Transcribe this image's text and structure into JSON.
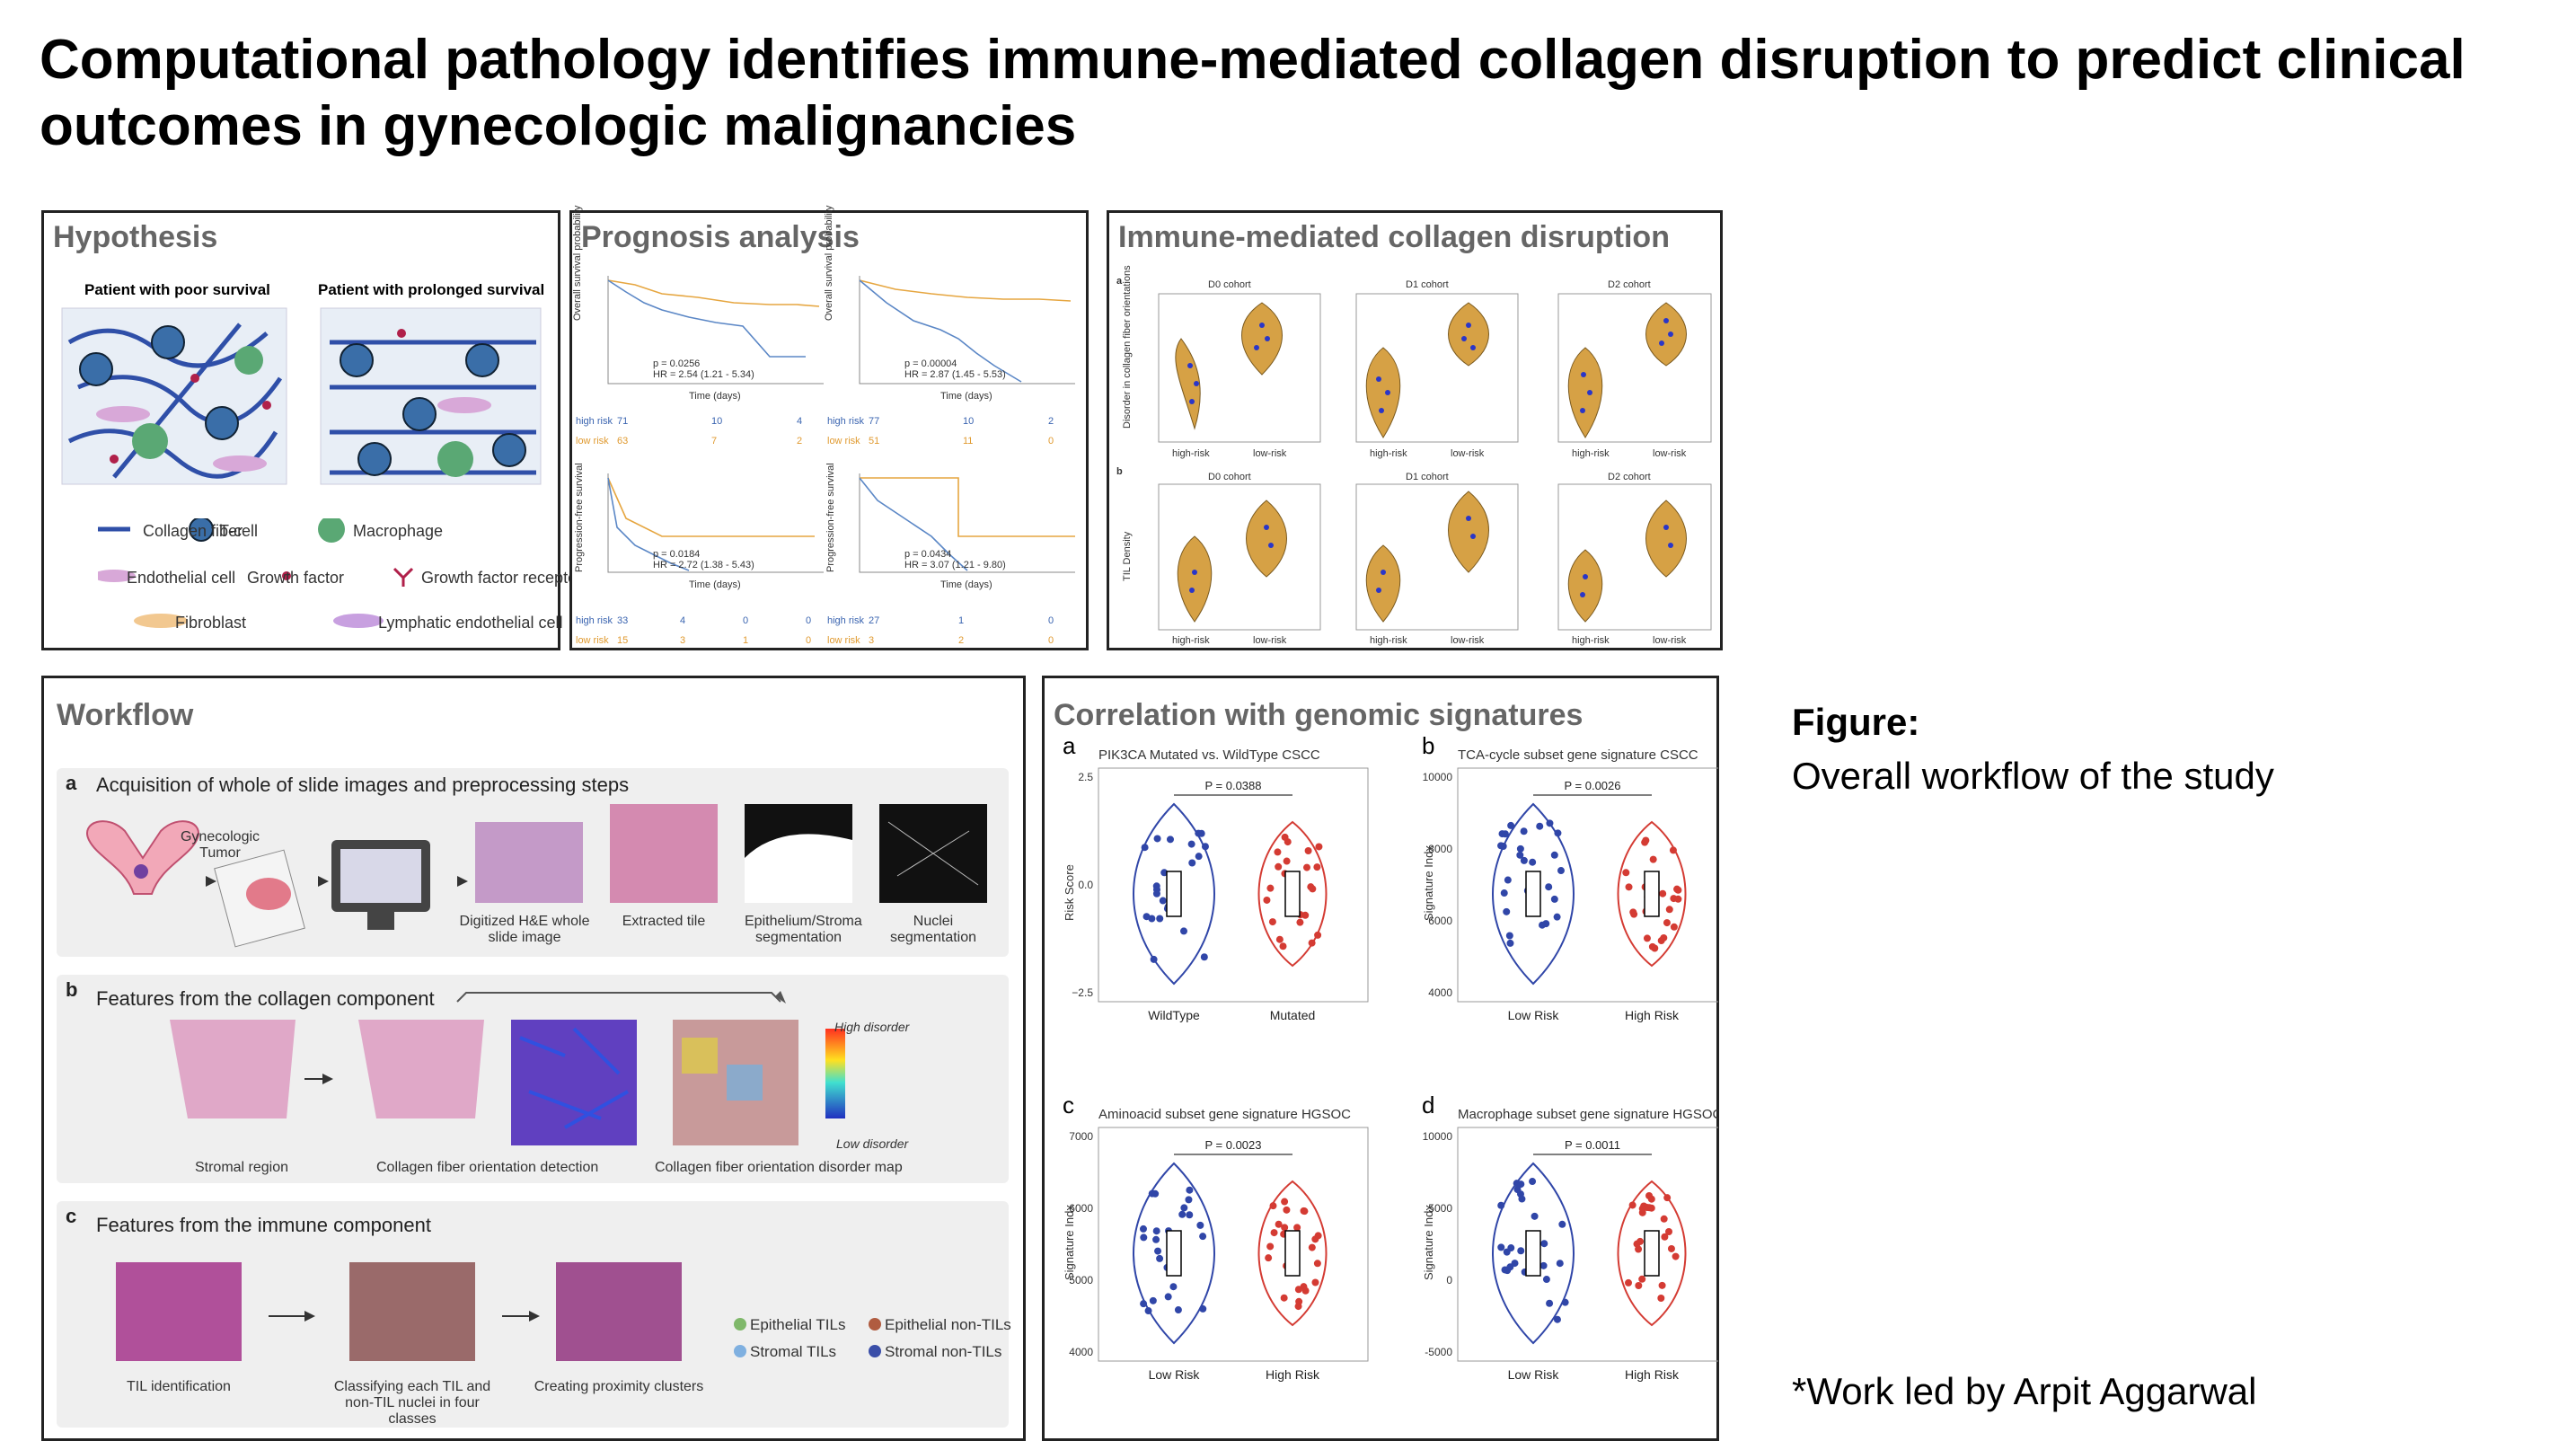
{
  "title": "Computational pathology identifies immune-mediated collagen disruption to predict clinical outcomes in gynecologic malignancies",
  "hypothesis": {
    "title": "Hypothesis",
    "left_label": "Patient with poor survival",
    "right_label": "Patient with prolonged survival",
    "legend": {
      "collagen": "Collagen fiber",
      "tcell": "T-cell",
      "macrophage": "Macrophage",
      "endothelial": "Endothelial cell",
      "growth_factor": "Growth factor",
      "receptor": "Growth factor receptor",
      "fibroblast": "Fibroblast",
      "lymphatic": "Lymphatic endothelial cell"
    }
  },
  "prognosis": {
    "title": "Prognosis analysis",
    "os_ylabel": "Overall survival probability",
    "pfs_ylabel": "Progression-free survival",
    "xlabel": "Time (days)",
    "high_risk": "high risk",
    "low_risk": "low risk",
    "p1": "p = 0.0256",
    "hr1": "HR = 2.54 (1.21 - 5.34)",
    "p2": "p = 0.00004",
    "hr2": "HR = 2.87 (1.45 - 5.53)",
    "p3": "p = 0.0184",
    "hr3": "HR = 2.72 (1.38 - 5.43)",
    "p4": "p = 0.0434",
    "hr4": "HR = 3.07 (1.21 - 9.80)",
    "risk_os1_high": [
      "71",
      "10",
      "4"
    ],
    "risk_os1_low": [
      "63",
      "7",
      "2"
    ],
    "risk_os2_high": [
      "77",
      "10",
      "2"
    ],
    "risk_os2_low": [
      "51",
      "11",
      "0"
    ],
    "risk_pfs1_high": [
      "33",
      "4",
      "0",
      "0"
    ],
    "risk_pfs1_low": [
      "15",
      "3",
      "1",
      "0"
    ],
    "risk_pfs2_high": [
      "27",
      "1",
      "0"
    ],
    "risk_pfs2_low": [
      "3",
      "2",
      "0"
    ]
  },
  "immune": {
    "title": "Immune-mediated collagen disruption",
    "row_a": "a",
    "row_b": "b",
    "ylabel_a": "Disorder in collagen fiber orientations",
    "ylabel_b": "TIL Density",
    "cohorts": [
      "D0 cohort",
      "D1 cohort",
      "D2 cohort"
    ],
    "groups": [
      "high-risk",
      "low-risk"
    ]
  },
  "workflow": {
    "title": "Workflow",
    "a_letter": "a",
    "a_title": "Acquisition of whole of slide images and preprocessing steps",
    "a_tumor": "Gynecologic Tumor",
    "a_labels": [
      "Digitized H&E whole slide image",
      "Extracted tile",
      "Epithelium/Stroma segmentation",
      "Nuclei segmentation"
    ],
    "b_letter": "b",
    "b_title": "Features from the collagen component",
    "b_labels": [
      "Stromal region",
      "Collagen fiber orientation detection",
      "Collagen fiber orientation disorder map"
    ],
    "b_high": "High disorder",
    "b_low": "Low disorder",
    "c_letter": "c",
    "c_title": "Features from the immune component",
    "c_labels": [
      "TIL identification",
      "Classifying each TIL and non-TIL nuclei in four classes",
      "Creating proximity clusters"
    ],
    "c_legend": [
      "Epithelial TILs",
      "Epithelial non-TILs",
      "Stromal TILs",
      "Stromal non-TILs"
    ]
  },
  "genomic": {
    "title": "Correlation with genomic signatures",
    "panels": [
      {
        "letter": "a",
        "subtitle": "PIK3CA Mutated vs. WildType CSCC",
        "ylabel": "Risk Score",
        "groups": [
          "WildType",
          "Mutated"
        ],
        "p": "P = 0.0388",
        "yticks": [
          "2.5",
          "0.0",
          "−2.5"
        ]
      },
      {
        "letter": "b",
        "subtitle": "TCA-cycle  subset gene signature  CSCC",
        "ylabel": "Signature Indx",
        "groups": [
          "Low Risk",
          "High Risk"
        ],
        "p": "P = 0.0026",
        "yticks": [
          "10000",
          "8000",
          "6000",
          "4000"
        ]
      },
      {
        "letter": "c",
        "subtitle": "Aminoacid  subset gene signature  HGSOC",
        "ylabel": "Signature Indx",
        "groups": [
          "Low Risk",
          "High Risk"
        ],
        "p": "P = 0.0023",
        "yticks": [
          "7000",
          "6000",
          "5000",
          "4000"
        ]
      },
      {
        "letter": "d",
        "subtitle": "Macrophage  subset gene signature  HGSOC",
        "ylabel": "Signature Indx",
        "groups": [
          "Low Risk",
          "High Risk"
        ],
        "p": "P = 0.0011",
        "yticks": [
          "10000",
          "5000",
          "0",
          "-5000"
        ]
      }
    ]
  },
  "side": {
    "figure_label": "Figure:",
    "caption": "Overall workflow of the study",
    "credit": "*Work led by Arpit Aggarwal"
  },
  "colors": {
    "blue": "#3046a8",
    "red": "#d43b33",
    "gold": "#d6a145",
    "panel_border": "#222222",
    "title_gray": "#666666"
  }
}
